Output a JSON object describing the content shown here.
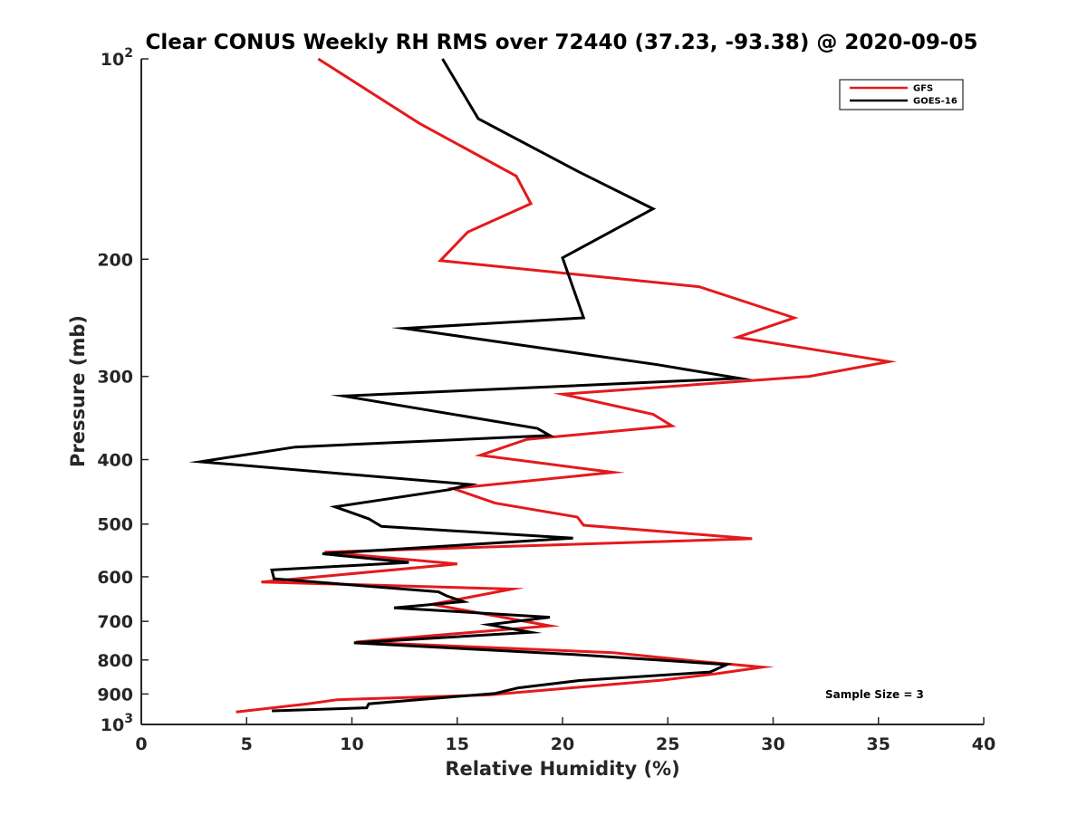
{
  "chart_data": {
    "type": "line",
    "title": "Clear CONUS Weekly RH RMS over 72440 (37.23, -93.38) @ 2020-09-05",
    "xlabel": "Relative Humidity (%)",
    "ylabel": "Pressure (mb)",
    "xlim": [
      0,
      40
    ],
    "ylim": [
      100,
      1000
    ],
    "yscale": "log",
    "y_reversed": true,
    "x_ticks": [
      0,
      5,
      10,
      15,
      20,
      25,
      30,
      35,
      40
    ],
    "x_tick_labels": [
      "0",
      "5",
      "10",
      "15",
      "20",
      "25",
      "30",
      "35",
      "40"
    ],
    "y_ticks": [
      100,
      200,
      300,
      400,
      500,
      600,
      700,
      800,
      900,
      1000
    ],
    "y_tick_labels": [
      {
        "base": "10",
        "exp": "2"
      },
      {
        "base": "200",
        "exp": ""
      },
      {
        "base": "300",
        "exp": ""
      },
      {
        "base": "400",
        "exp": ""
      },
      {
        "base": "500",
        "exp": ""
      },
      {
        "base": "600",
        "exp": ""
      },
      {
        "base": "700",
        "exp": ""
      },
      {
        "base": "800",
        "exp": ""
      },
      {
        "base": "900",
        "exp": ""
      },
      {
        "base": "10",
        "exp": "3"
      }
    ],
    "grid": false,
    "legend_position": "top-right",
    "annotation": "Sample Size = 3",
    "series": [
      {
        "name": "GFS",
        "color": "#e41a1c",
        "points": [
          [
            8.4,
            100
          ],
          [
            13.2,
            125
          ],
          [
            17.8,
            150
          ],
          [
            18.5,
            165
          ],
          [
            15.5,
            182
          ],
          [
            14.2,
            201
          ],
          [
            26.5,
            220
          ],
          [
            31.0,
            245
          ],
          [
            28.3,
            262
          ],
          [
            35.5,
            285
          ],
          [
            31.7,
            300
          ],
          [
            20.0,
            319
          ],
          [
            24.3,
            342
          ],
          [
            25.2,
            356
          ],
          [
            18.3,
            373
          ],
          [
            16.1,
            394
          ],
          [
            22.4,
            418
          ],
          [
            14.8,
            442
          ],
          [
            16.8,
            465
          ],
          [
            20.7,
            488
          ],
          [
            21.0,
            502
          ],
          [
            29.0,
            526
          ],
          [
            8.7,
            551
          ],
          [
            15.0,
            574
          ],
          [
            5.7,
            611
          ],
          [
            17.6,
            626
          ],
          [
            13.8,
            660
          ],
          [
            19.4,
            711
          ],
          [
            10.2,
            752
          ],
          [
            22.4,
            780
          ],
          [
            26.3,
            803
          ],
          [
            29.5,
            820
          ],
          [
            27.3,
            839
          ],
          [
            24.7,
            858
          ],
          [
            16.5,
            903
          ],
          [
            9.3,
            918
          ],
          [
            7.9,
            931
          ],
          [
            4.5,
            958
          ]
        ]
      },
      {
        "name": "GOES-16",
        "color": "#000000",
        "points": [
          [
            14.3,
            100
          ],
          [
            16.0,
            123
          ],
          [
            20.8,
            148
          ],
          [
            24.3,
            168
          ],
          [
            20.0,
            199
          ],
          [
            21.0,
            245
          ],
          [
            12.5,
            254
          ],
          [
            24.5,
            288
          ],
          [
            28.4,
            302
          ],
          [
            9.6,
            321
          ],
          [
            18.8,
            359
          ],
          [
            19.4,
            368
          ],
          [
            7.3,
            383
          ],
          [
            2.8,
            403
          ],
          [
            15.6,
            436
          ],
          [
            14.6,
            444
          ],
          [
            9.2,
            471
          ],
          [
            10.8,
            491
          ],
          [
            11.4,
            504
          ],
          [
            20.5,
            525
          ],
          [
            8.6,
            554
          ],
          [
            12.7,
            571
          ],
          [
            6.2,
            586
          ],
          [
            6.3,
            604
          ],
          [
            14.1,
            632
          ],
          [
            14.5,
            641
          ],
          [
            15.3,
            654
          ],
          [
            12.0,
            668
          ],
          [
            19.4,
            690
          ],
          [
            16.5,
            708
          ],
          [
            18.5,
            727
          ],
          [
            10.1,
            754
          ],
          [
            20.8,
            786
          ],
          [
            27.8,
            813
          ],
          [
            27.0,
            834
          ],
          [
            20.8,
            859
          ],
          [
            17.9,
            881
          ],
          [
            16.8,
            898
          ],
          [
            10.8,
            931
          ],
          [
            10.7,
            944
          ],
          [
            6.2,
            954
          ]
        ]
      }
    ]
  }
}
